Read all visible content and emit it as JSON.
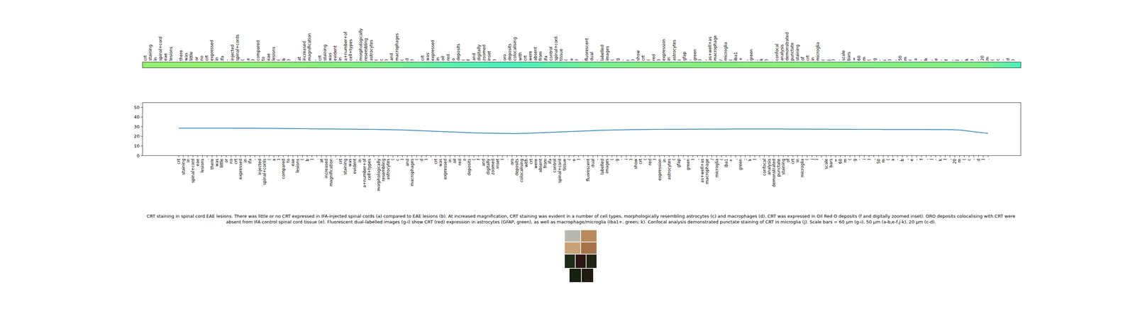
{
  "chart_data": [
    {
      "type": "heatmap",
      "categories": [
        "crt",
        "staining",
        "in",
        "spinal+cord",
        "eae",
        "lesions",
        ".",
        "there",
        "was",
        "little",
        "or",
        "no",
        "crt",
        "expressed",
        "in",
        "ifa",
        "-",
        "injected",
        "spinal+cords",
        "(",
        "a",
        ")",
        "compared",
        "to",
        "eae",
        "lesions",
        "(",
        "b",
        ")",
        ".",
        "at",
        "increased",
        "magnification",
        ",",
        "crt",
        "staining",
        "was",
        "evident",
        "in",
        "a+number+of",
        "cell+types",
        ",",
        "morphologically",
        "resembling",
        "astrocytes",
        "(",
        "c",
        ")",
        "and",
        "macrophages",
        "(",
        "d",
        ")",
        ".",
        "crt",
        "was",
        "expressed",
        "in",
        "oil",
        "red",
        "o",
        "deposits",
        "(",
        "f",
        "and",
        "digitally",
        "zoomed",
        "inset",
        ")",
        ".",
        "oro",
        "deposits",
        "colocalising",
        "with",
        "crt",
        "were",
        "absent",
        "from",
        "ifa",
        "control",
        "spinal+cord",
        "tissue",
        "(",
        "e",
        ")",
        ".",
        "fluorescent",
        "dual",
        "-",
        "labelled",
        "images",
        "(",
        "g",
        "-",
        "i",
        ")",
        "show",
        "crt",
        "(",
        "red",
        ")",
        "expression",
        "in",
        "astrocytes",
        "(",
        "gfap",
        ",",
        "green",
        ")",
        ",",
        "as+well+as",
        "macrophage",
        "/",
        "microglia",
        "(",
        "iba1",
        "+",
        ",",
        "green",
        ";",
        "k",
        ")",
        ".",
        "confocal",
        "analysis",
        "demonstrated",
        "punctate",
        "staining",
        "of",
        "crt",
        "in",
        "microglia",
        "(",
        "j",
        ")",
        ".",
        "scale",
        "bars",
        "=",
        "60",
        "m",
        "(",
        "g",
        "-",
        "i",
        ")",
        ",",
        "50",
        "m",
        "(",
        "a",
        "-",
        "b",
        ",",
        "e",
        "-",
        "f",
        ",",
        "j",
        "-",
        "k",
        ")",
        ",",
        "20",
        "m",
        "(",
        "c",
        "-",
        "d",
        ")",
        "."
      ],
      "values": [
        28.5,
        28.5,
        28.5,
        28.5,
        28.5,
        28.5,
        28.5,
        28.5,
        28.5,
        28.5,
        28.5,
        28.5,
        28.4,
        28.4,
        28.4,
        28.4,
        28.4,
        28.3,
        28.3,
        28.3,
        28.2,
        28.2,
        28.1,
        28.1,
        28.0,
        28.0,
        27.9,
        27.9,
        27.8,
        27.8,
        27.7,
        27.7,
        27.6,
        27.6,
        27.5,
        27.5,
        27.4,
        27.4,
        27.3,
        27.3,
        27.2,
        27.2,
        27.1,
        27.0,
        26.9,
        26.8,
        26.7,
        26.6,
        26.4,
        26.2,
        26.0,
        25.8,
        25.6,
        25.4,
        25.2,
        25.0,
        24.8,
        24.6,
        24.4,
        24.2,
        24.0,
        23.8,
        23.6,
        23.5,
        23.4,
        23.3,
        23.2,
        23.1,
        23.0,
        23.0,
        22.9,
        22.9,
        23.0,
        23.1,
        23.3,
        23.5,
        23.7,
        23.9,
        24.1,
        24.3,
        24.5,
        24.7,
        24.9,
        25.1,
        25.3,
        25.5,
        25.7,
        25.9,
        26.1,
        26.3,
        26.4,
        26.5,
        26.6,
        26.7,
        26.8,
        26.9,
        27.0,
        27.0,
        27.1,
        27.1,
        27.2,
        27.2,
        27.2,
        27.3,
        27.3,
        27.3,
        27.3,
        27.4,
        27.4,
        27.4,
        27.4,
        27.5,
        27.5,
        27.5,
        27.5,
        27.5,
        27.6,
        27.6,
        27.6,
        27.6,
        27.6,
        27.6,
        27.6,
        27.6,
        27.6,
        27.6,
        27.6,
        27.6,
        27.5,
        27.5,
        27.5,
        27.5,
        27.5,
        27.4,
        27.4,
        27.4,
        27.4,
        27.3,
        27.3,
        27.3,
        27.3,
        27.3,
        27.2,
        27.2,
        27.2,
        27.2,
        27.2,
        27.2,
        27.1,
        27.1,
        27.1,
        27.1,
        27.1,
        27.1,
        27.1,
        27.1,
        27.1,
        27.1,
        27.0,
        27.0,
        27.0,
        27.0,
        26.9,
        26.8,
        26.5,
        26.0,
        25.4,
        24.8,
        24.2,
        23.6,
        23.0
      ],
      "color_range": [
        22,
        29
      ]
    },
    {
      "type": "line",
      "categories": [
        "crt",
        "staining",
        "in",
        "spinal+cord",
        "eae",
        "lesions",
        ".",
        "there",
        "was",
        "little",
        "or",
        "no",
        "crt",
        "expressed",
        "in",
        "ifa",
        "-",
        "injected",
        "spinal+cords",
        "(",
        "a",
        ")",
        "compared",
        "to",
        "eae",
        "lesions",
        "(",
        "b",
        ")",
        ".",
        "at",
        "increased",
        "magnification",
        ",",
        "crt",
        "staining",
        "was",
        "evident",
        "in",
        "a+number+of",
        "cell+types",
        ",",
        "morphologically",
        "resembling",
        "astrocytes",
        "(",
        "c",
        ")",
        "and",
        "macrophages",
        "(",
        "d",
        ")",
        ".",
        "crt",
        "was",
        "expressed",
        "in",
        "oil",
        "red",
        "o",
        "deposits",
        "(",
        "f",
        "and",
        "digitally",
        "zoomed",
        "inset",
        ")",
        ".",
        "oro",
        "deposits",
        "colocalising",
        "with",
        "crt",
        "were",
        "absent",
        "from",
        "ifa",
        "control",
        "spinal+cord",
        "tissue",
        "(",
        "e",
        ")",
        ".",
        "fluorescent",
        "dual",
        "-",
        "labelled",
        "images",
        "(",
        "g",
        "-",
        "i",
        ")",
        "show",
        "crt",
        "(",
        "red",
        ")",
        "expression",
        "in",
        "astrocytes",
        "(",
        "gfap",
        ",",
        "green",
        ")",
        ",",
        "as+well+as",
        "macrophage",
        "/",
        "microglia",
        "(",
        "iba1",
        "+",
        ",",
        "green",
        ";",
        "k",
        ")",
        ".",
        "confocal",
        "analysis",
        "demonstrated",
        "punctate",
        "staining",
        "of",
        "crt",
        "in",
        "microglia",
        "(",
        "j",
        ")",
        ".",
        "scale",
        "bars",
        "=",
        "60",
        "m",
        "(",
        "g",
        "-",
        "i",
        ")",
        ",",
        "50",
        "m",
        "(",
        "a",
        "-",
        "b",
        ",",
        "e",
        "-",
        "f",
        ",",
        "j",
        "-",
        "k",
        ")",
        ",",
        "20",
        "m",
        "(",
        "c",
        "-",
        "d",
        ")",
        "."
      ],
      "values": [
        28.5,
        28.5,
        28.5,
        28.5,
        28.5,
        28.5,
        28.5,
        28.5,
        28.5,
        28.5,
        28.5,
        28.5,
        28.4,
        28.4,
        28.4,
        28.4,
        28.4,
        28.3,
        28.3,
        28.3,
        28.2,
        28.2,
        28.1,
        28.1,
        28.0,
        28.0,
        27.9,
        27.9,
        27.8,
        27.8,
        27.7,
        27.7,
        27.6,
        27.6,
        27.5,
        27.5,
        27.4,
        27.4,
        27.3,
        27.3,
        27.2,
        27.2,
        27.1,
        27.0,
        26.9,
        26.8,
        26.7,
        26.6,
        26.4,
        26.2,
        26.0,
        25.8,
        25.6,
        25.4,
        25.2,
        25.0,
        24.8,
        24.6,
        24.4,
        24.2,
        24.0,
        23.8,
        23.6,
        23.5,
        23.4,
        23.3,
        23.2,
        23.1,
        23.0,
        23.0,
        22.9,
        22.9,
        23.0,
        23.1,
        23.3,
        23.5,
        23.7,
        23.9,
        24.1,
        24.3,
        24.5,
        24.7,
        24.9,
        25.1,
        25.3,
        25.5,
        25.7,
        25.9,
        26.1,
        26.3,
        26.4,
        26.5,
        26.6,
        26.7,
        26.8,
        26.9,
        27.0,
        27.0,
        27.1,
        27.1,
        27.2,
        27.2,
        27.2,
        27.3,
        27.3,
        27.3,
        27.3,
        27.4,
        27.4,
        27.4,
        27.4,
        27.5,
        27.5,
        27.5,
        27.5,
        27.5,
        27.6,
        27.6,
        27.6,
        27.6,
        27.6,
        27.6,
        27.6,
        27.6,
        27.6,
        27.6,
        27.6,
        27.6,
        27.5,
        27.5,
        27.5,
        27.5,
        27.5,
        27.4,
        27.4,
        27.4,
        27.4,
        27.3,
        27.3,
        27.3,
        27.3,
        27.3,
        27.2,
        27.2,
        27.2,
        27.2,
        27.2,
        27.2,
        27.1,
        27.1,
        27.1,
        27.1,
        27.1,
        27.1,
        27.1,
        27.1,
        27.1,
        27.1,
        27.0,
        27.0,
        27.0,
        27.0,
        26.9,
        26.8,
        26.5,
        26.0,
        25.4,
        24.8,
        24.2,
        23.6,
        23.0
      ],
      "ylim": [
        0,
        55
      ],
      "yticks": [
        0,
        10,
        20,
        30,
        40,
        50
      ],
      "color": "#1f77b4"
    }
  ],
  "caption": [
    "CRT staining in spinal cord EAE lesions. There was little or no CRT expressed in IFA-injected spinal cords (a) compared to EAE lesions (b). At increased magnification, CRT staining was evident in a number of cell types, morphologically resembling astrocytes (c) and macrophages (d). CRT was expressed in Oil Red O deposits (f and digitally zoomed inset). ORO deposits colocalising with CRT were",
    "absent from IFA control spinal cord tissue (e). Fluorescent dual-labelled images (g-i) show CRT (red) expression in astrocytes (GFAP, green), as well as macrophage/microglia (Iba1+, green; k). Confocal analysis demonstrated punctate staining of CRT in microglia (j). Scale bars = 60 μm (g-i), 50 μm (a-b,e-f,j-k), 20 μm (c-d)."
  ]
}
